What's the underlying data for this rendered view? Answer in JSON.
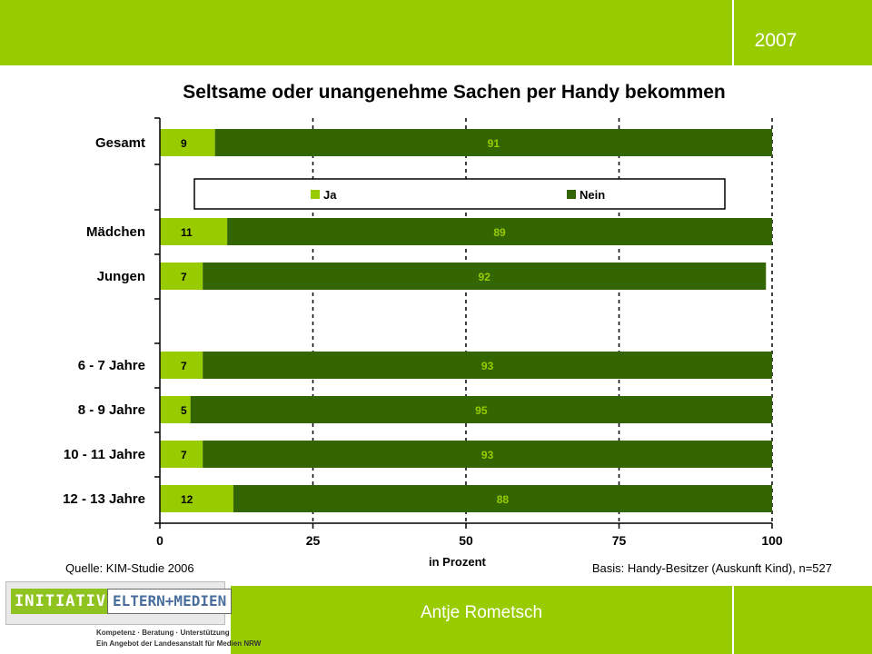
{
  "header": {
    "year": "2007"
  },
  "footer": {
    "presenter": "Antje Rometsch",
    "source": "Quelle: KIM-Studie 2006",
    "basis": "Basis: Handy-Besitzer (Auskunft Kind), n=527"
  },
  "logo": {
    "initiative": "INITIATIVE",
    "eltern_medien": "ELTERN+MEDIEN",
    "line1": "Kompetenz · Beratung · Unterstützung",
    "line2": "Ein Angebot der Landesanstalt für Medien NRW"
  },
  "colors": {
    "brand_green": "#99cc00",
    "ja": "#99cc00",
    "nein": "#336600"
  },
  "chart_data": {
    "type": "bar",
    "orientation": "horizontal",
    "stacked": true,
    "title": "Seltsame oder unangenehme Sachen per Handy bekommen",
    "xlabel": "in Prozent",
    "xlim": [
      0,
      100
    ],
    "xticks": [
      0,
      25,
      50,
      75,
      100
    ],
    "grid": "dashed vertical at 25, 50, 75, 100",
    "legend_placement": "inside, below Gesamt",
    "categories": [
      "Gesamt",
      "",
      "Mädchen",
      "Jungen",
      "",
      "6 - 7 Jahre",
      "8 - 9 Jahre",
      "10 - 11 Jahre",
      "12 - 13 Jahre"
    ],
    "series": [
      {
        "name": "Ja",
        "color": "#99cc00",
        "values": [
          9,
          null,
          11,
          7,
          null,
          7,
          5,
          7,
          12
        ]
      },
      {
        "name": "Nein",
        "color": "#336600",
        "values": [
          91,
          null,
          89,
          92,
          null,
          93,
          95,
          93,
          88
        ]
      }
    ]
  }
}
